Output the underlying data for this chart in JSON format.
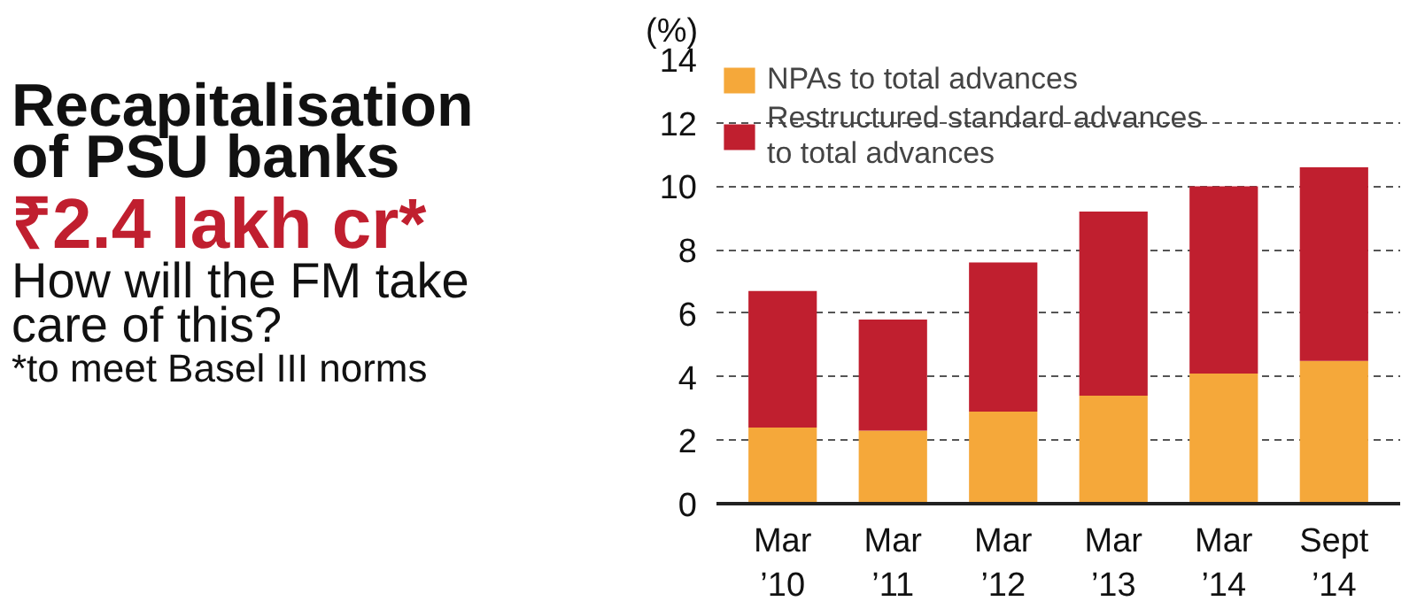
{
  "chart_data": {
    "type": "bar",
    "title": "Recapitalisation of PSU banks",
    "subtitle": "₹2.4 lakh cr*",
    "annotations": [
      "How will the FM take care of this?",
      "*to meet Basel III norms"
    ],
    "ylabel": "(%)",
    "categories": [
      "Mar ’10",
      "Mar ’11",
      "Mar ’12",
      "Mar ’13",
      "Mar ’14",
      "Sept ’14"
    ],
    "series": [
      {
        "name": "NPAs to total advances",
        "color": "#f5a83a",
        "values": [
          2.4,
          2.3,
          2.9,
          3.4,
          4.1,
          4.5
        ]
      },
      {
        "name": "Restructured standard advances to total advances",
        "color": "#c01f2f",
        "values": [
          4.3,
          3.5,
          4.7,
          5.8,
          5.9,
          6.1
        ]
      }
    ],
    "stacked": true,
    "ylim": [
      0,
      14
    ],
    "yticks": [
      0,
      2,
      4,
      6,
      8,
      10,
      12,
      14
    ],
    "grid": "y",
    "legend": "top left"
  }
}
